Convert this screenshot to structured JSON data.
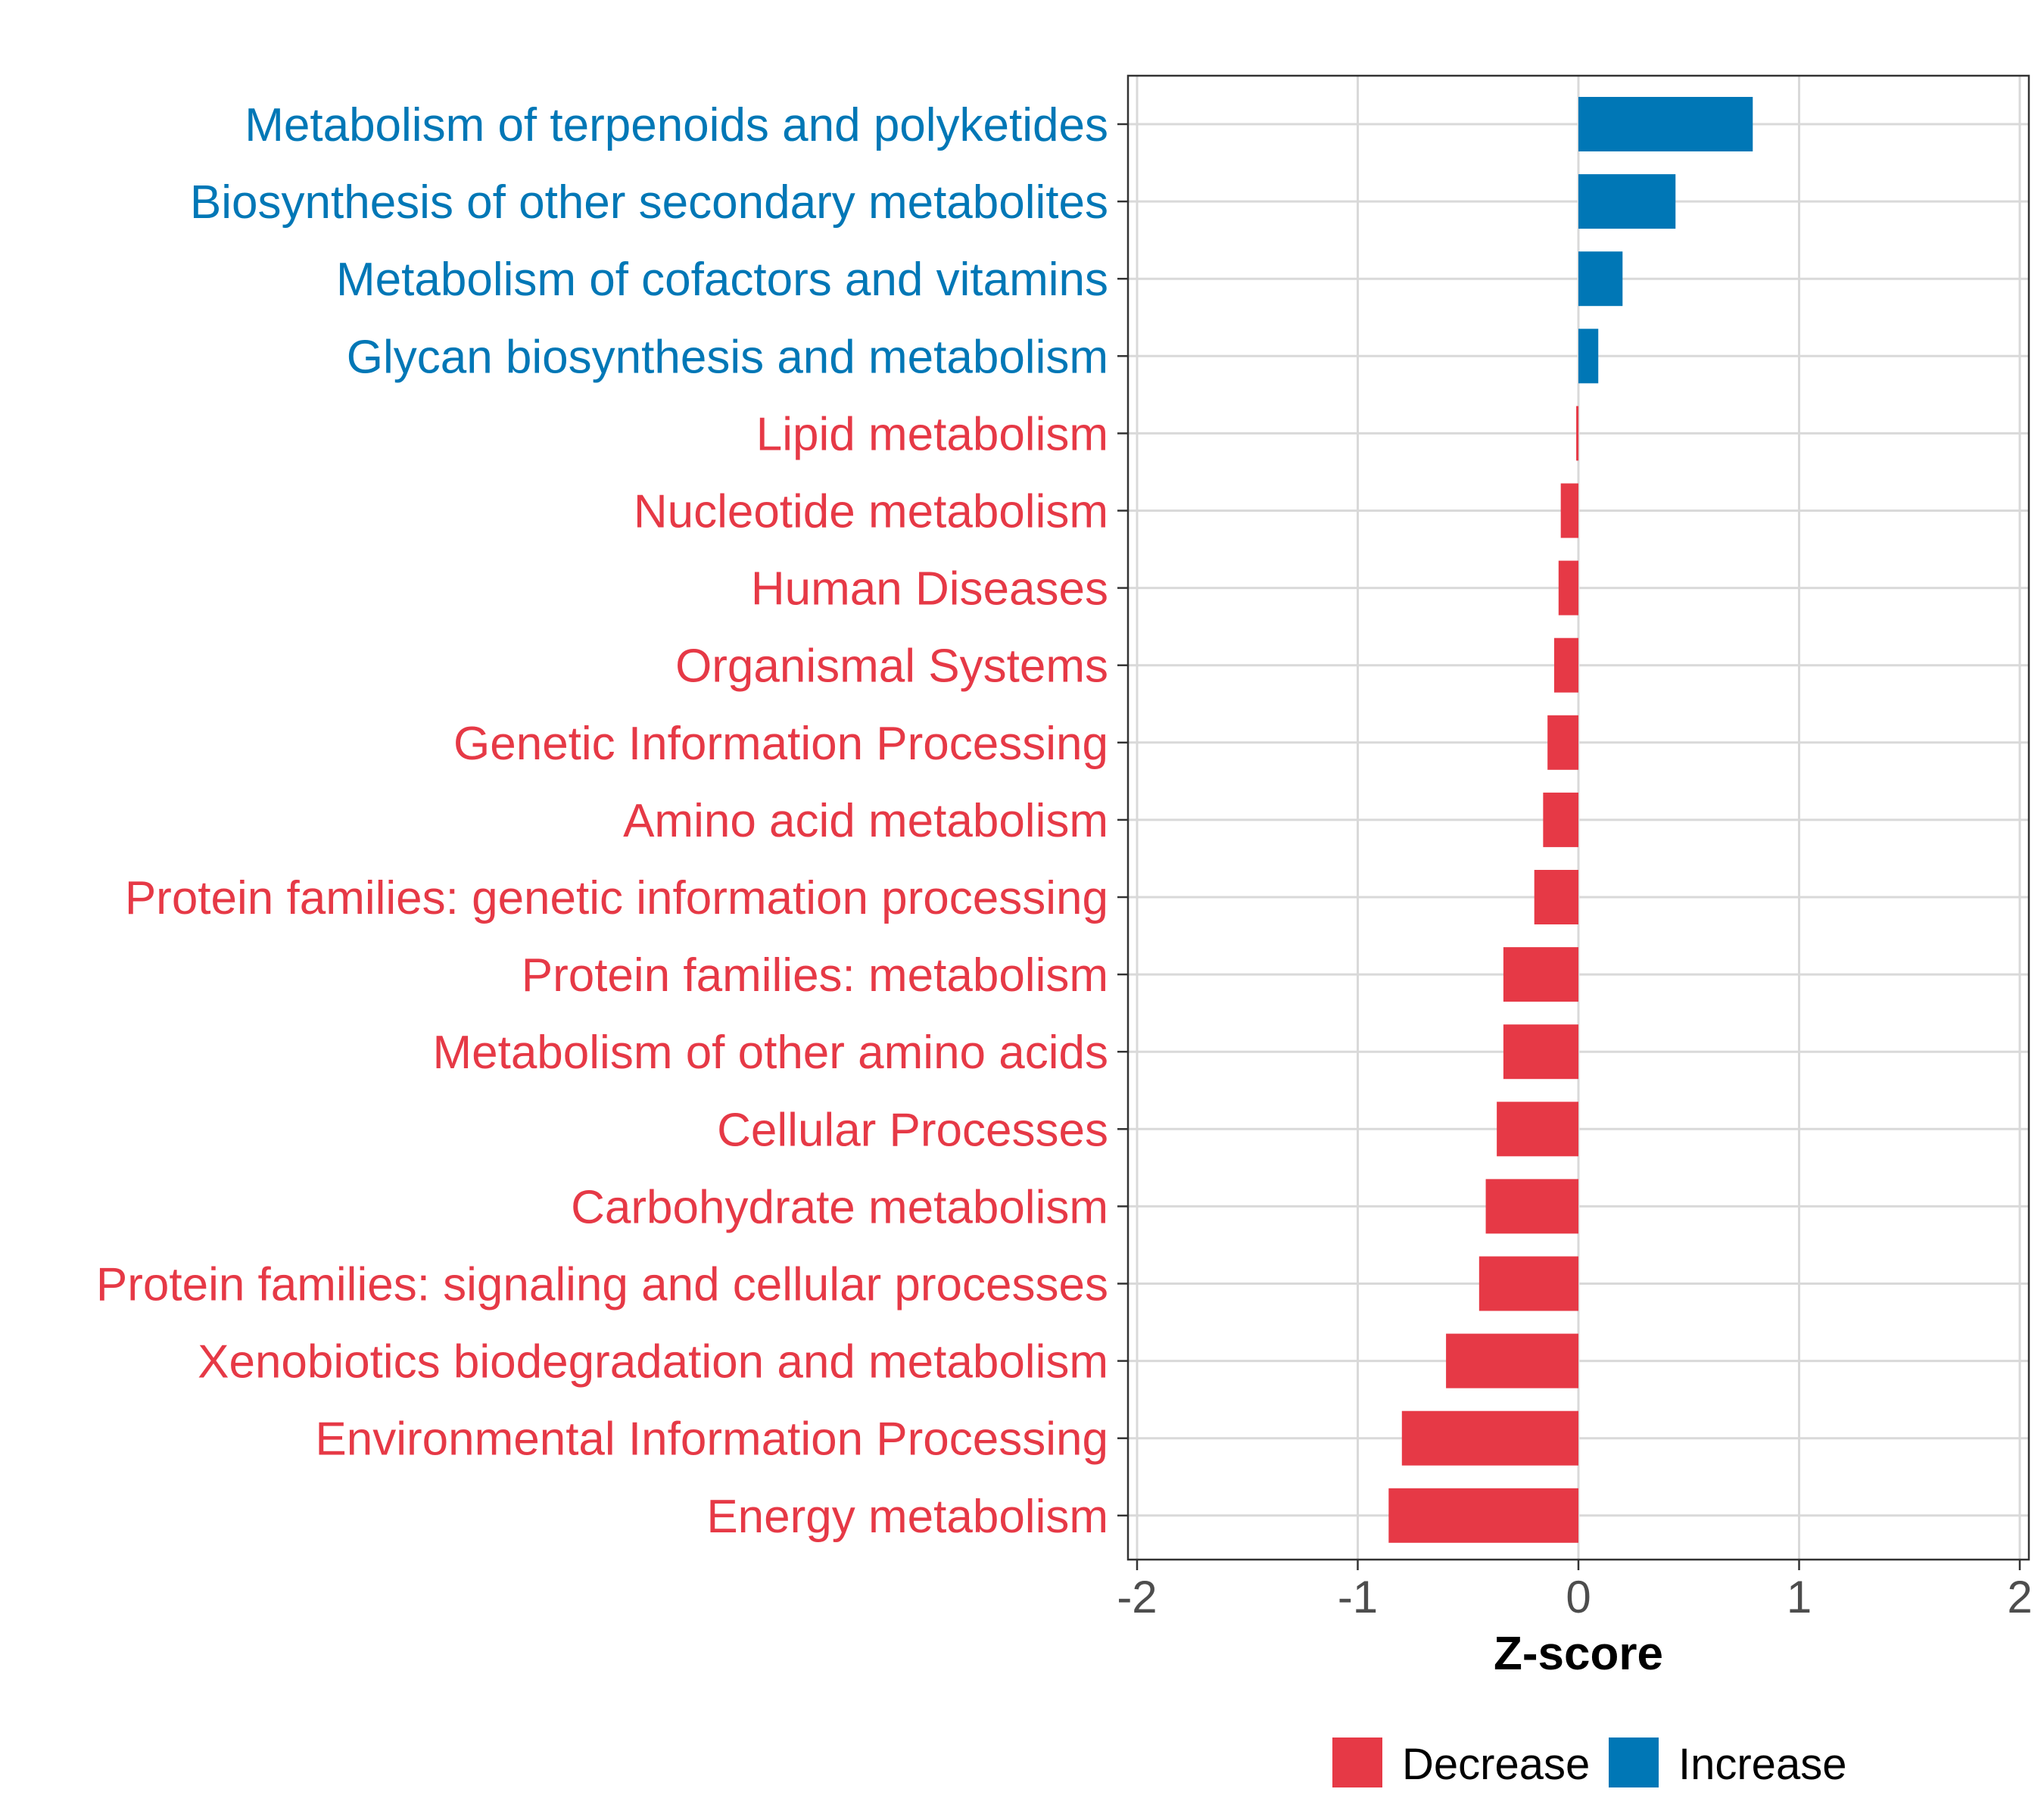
{
  "chart_data": {
    "type": "bar",
    "orientation": "horizontal",
    "xlabel": "Z-score",
    "xlim": [
      -2,
      2
    ],
    "xticks": [
      -2,
      -1,
      0,
      1,
      2
    ],
    "xtick_labels": [
      "-2",
      "-1",
      "0",
      "1",
      "2"
    ],
    "grid": true,
    "legend_position": "bottom",
    "categories": [
      "Metabolism of terpenoids and polyketides",
      "Biosynthesis of other secondary metabolites",
      "Metabolism of cofactors and vitamins",
      "Glycan biosynthesis and metabolism",
      "Lipid metabolism",
      "Nucleotide metabolism",
      "Human Diseases",
      "Organismal Systems",
      "Genetic Information Processing",
      "Amino acid metabolism",
      "Protein families: genetic information processing",
      "Protein families: metabolism",
      "Metabolism of other amino acids",
      "Cellular Processes",
      "Carbohydrate metabolism",
      "Protein families: signaling and cellular processes",
      "Xenobiotics biodegradation and metabolism",
      "Environmental Information Processing",
      "Energy metabolism"
    ],
    "values": [
      0.79,
      0.44,
      0.2,
      0.09,
      -0.01,
      -0.08,
      -0.09,
      -0.11,
      -0.14,
      -0.16,
      -0.2,
      -0.34,
      -0.34,
      -0.37,
      -0.42,
      -0.45,
      -0.6,
      -0.8,
      -0.86
    ],
    "legend": [
      {
        "label": "Decrease",
        "color": "#E63946"
      },
      {
        "label": "Increase",
        "color": "#0077B6"
      }
    ],
    "colors": {
      "decrease": "#E63946",
      "increase": "#0077B6",
      "grid": "#D9D9D9",
      "axis": "#333333",
      "tick_text": "#4D4D4D"
    }
  }
}
